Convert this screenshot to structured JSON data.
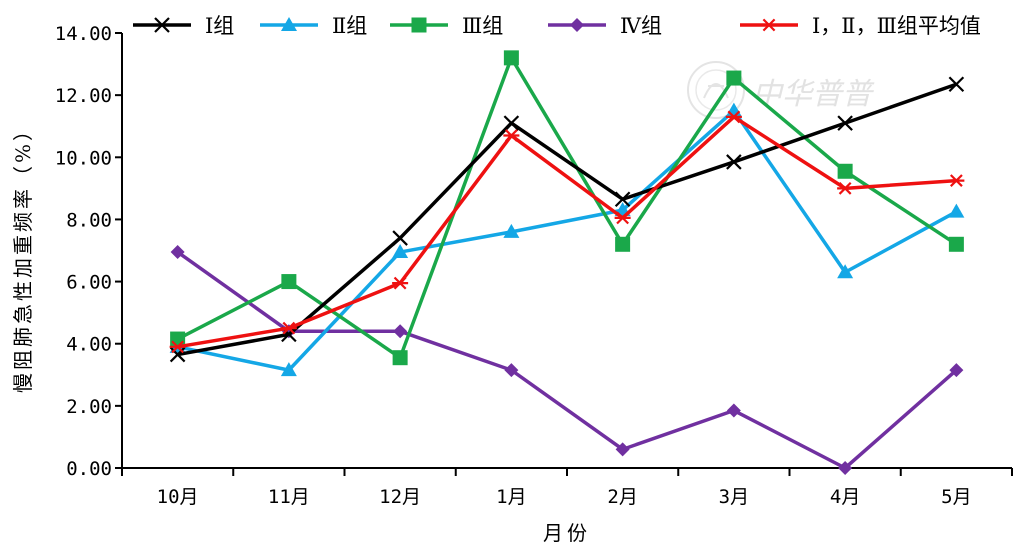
{
  "chart_data": {
    "type": "line",
    "title": "",
    "xlabel": "月份",
    "ylabel": "慢阻肺急性加重频率（%）",
    "ylim": [
      0,
      14
    ],
    "yticks": [
      "0.00",
      "2.00",
      "4.00",
      "6.00",
      "8.00",
      "10.00",
      "12.00",
      "14.00"
    ],
    "categories": [
      "10月",
      "11月",
      "12月",
      "1月",
      "2月",
      "3月",
      "4月",
      "5月"
    ],
    "grid": false,
    "legend_position": "top",
    "series": [
      {
        "name": "Ⅰ组",
        "color": "#000000",
        "marker": "x",
        "values": [
          3.65,
          4.3,
          7.4,
          11.1,
          8.65,
          9.85,
          11.1,
          12.35
        ]
      },
      {
        "name": "Ⅱ组",
        "color": "#14a7e6",
        "marker": "triangle",
        "values": [
          3.9,
          3.15,
          6.95,
          7.6,
          8.3,
          11.5,
          6.3,
          8.25
        ]
      },
      {
        "name": "Ⅲ组",
        "color": "#1aa84a",
        "marker": "square",
        "values": [
          4.15,
          6.0,
          3.55,
          13.2,
          7.2,
          12.55,
          9.55,
          7.2
        ]
      },
      {
        "name": "Ⅳ组",
        "color": "#7030a0",
        "marker": "diamond",
        "values": [
          6.95,
          4.4,
          4.4,
          3.15,
          0.6,
          1.85,
          0.0,
          3.15
        ]
      },
      {
        "name": "Ⅰ，Ⅱ，Ⅲ组平均值",
        "color": "#ee1111",
        "marker": "asterisk",
        "values": [
          3.9,
          4.5,
          5.95,
          10.7,
          8.05,
          11.3,
          9.0,
          9.25
        ]
      }
    ]
  },
  "watermark": {
    "text": "中华普普",
    "icon": "watermark-seal-icon"
  }
}
